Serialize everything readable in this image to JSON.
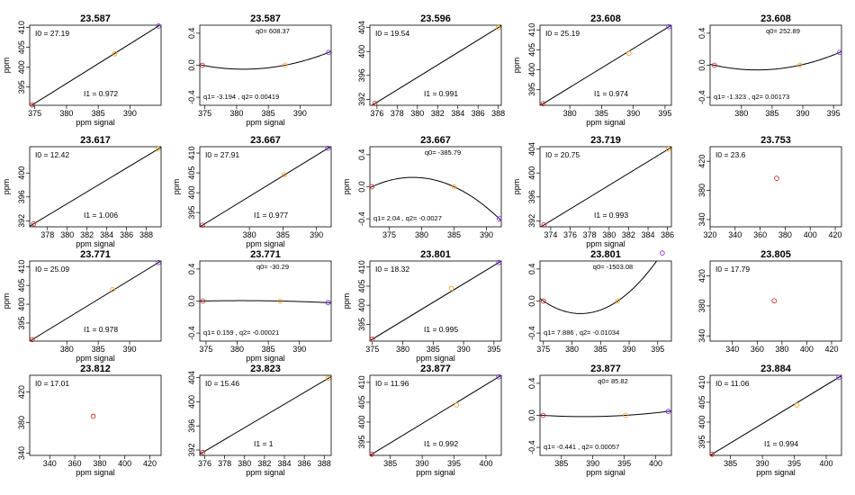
{
  "colors": {
    "p1": "#d62728",
    "p2": "#f5a623",
    "p3": "#8a2be2",
    "line": "#000000"
  },
  "chart_data": [
    {
      "type": "scatter",
      "title": "23.587",
      "xlabel": "ppm signal",
      "ylabel": "ppm",
      "x": [
        374.6,
        387.6,
        394.5
      ],
      "y": [
        390.5,
        403.4,
        410.4
      ],
      "xlim": [
        374.2,
        394.9
      ],
      "ylim": [
        390.4,
        410.6
      ],
      "xticks": [
        375,
        380,
        385,
        390
      ],
      "yticks": [
        395,
        400,
        405,
        410
      ],
      "fit": "line",
      "labels": [
        "I0 = 27.19",
        "I1 = 0.972"
      ]
    },
    {
      "type": "scatter",
      "title": "23.587",
      "xlabel": "ppm signal",
      "ylabel": "",
      "x": [
        374.6,
        387.6,
        394.5
      ],
      "y": [
        0,
        0,
        0.16
      ],
      "xlim": [
        374.2,
        394.9
      ],
      "ylim": [
        -0.5,
        0.5
      ],
      "xticks": [
        375,
        380,
        385,
        390
      ],
      "yticks": [
        -0.4,
        0.0,
        0.4
      ],
      "fit": "quadratic",
      "labels": [
        "q0= 608.37",
        "q1= -3.194 , q2= 0.00419"
      ]
    },
    {
      "type": "scatter",
      "title": "23.596",
      "xlabel": "",
      "ylabel": "",
      "x": [
        375.8,
        388.0
      ],
      "y": [
        391.3,
        404.0
      ],
      "xlim": [
        375.3,
        388.3
      ],
      "ylim": [
        391.0,
        404.4
      ],
      "xticks": [
        376,
        378,
        380,
        382,
        384,
        386,
        388
      ],
      "yticks": [
        392,
        396,
        400,
        404
      ],
      "fit": "line",
      "labels": [
        "I0 = 19.54",
        "I1 = 0.991"
      ]
    },
    {
      "type": "scatter",
      "title": "23.608",
      "xlabel": "ppm signal",
      "ylabel": "ppm",
      "x": [
        375.8,
        389.3,
        395.6
      ],
      "y": [
        391.4,
        404.1,
        410.8
      ],
      "xlim": [
        375.3,
        396.0
      ],
      "ylim": [
        391.0,
        411.2
      ],
      "xticks": [
        380,
        385,
        390,
        395
      ],
      "yticks": [
        395,
        400,
        405,
        410
      ],
      "fit": "line",
      "labels": [
        "I0 = 25.19",
        "I1 = 0.974"
      ]
    },
    {
      "type": "scatter",
      "title": "23.608",
      "xlabel": "",
      "ylabel": "",
      "x": [
        375.6,
        389.5,
        396.0
      ],
      "y": [
        0,
        0,
        0.16
      ],
      "xlim": [
        374.9,
        396.3
      ],
      "ylim": [
        -0.5,
        0.5
      ],
      "xticks": [
        380,
        385,
        390,
        395
      ],
      "yticks": [
        -0.4,
        0.0,
        0.4
      ],
      "fit": "quadratic",
      "labels": [
        "q0= 252.89",
        "q1= -1.323 , q2= 0.00173"
      ]
    },
    {
      "type": "scatter",
      "title": "23.617",
      "xlabel": "ppm signal",
      "ylabel": "ppm",
      "x": [
        376.6,
        389.2
      ],
      "y": [
        391.5,
        404.0
      ],
      "xlim": [
        376.2,
        389.5
      ],
      "ylim": [
        391.0,
        404.4
      ],
      "xticks": [
        378,
        380,
        382,
        384,
        386,
        388
      ],
      "yticks": [
        392,
        396,
        400
      ],
      "fit": "line",
      "labels": [
        "I0 = 12.42",
        "I1 = 1.006"
      ]
    },
    {
      "type": "scatter",
      "title": "23.667",
      "xlabel": "ppm signal",
      "ylabel": "ppm",
      "x": [
        373.0,
        385.2,
        391.7
      ],
      "y": [
        391.8,
        404.5,
        411.2
      ],
      "xlim": [
        372.6,
        392.2
      ],
      "ylim": [
        391.4,
        411.6
      ],
      "xticks": [
        380,
        385,
        390
      ],
      "yticks": [
        395,
        400,
        405,
        410
      ],
      "fit": "line",
      "labels": [
        "I0 = 27.91",
        "I1 = 0.977"
      ]
    },
    {
      "type": "scatter",
      "title": "23.667",
      "xlabel": "",
      "ylabel": "ppm",
      "x": [
        372.3,
        385.0,
        392.0
      ],
      "y": [
        0,
        0,
        -0.4
      ],
      "xlim": [
        372.0,
        392.3
      ],
      "ylim": [
        -0.5,
        0.5
      ],
      "xticks": [
        375,
        380,
        385,
        390
      ],
      "yticks": [
        -0.4,
        0.0,
        0.4
      ],
      "fit": "quadratic",
      "labels": [
        "q0= -385.79",
        "q1= 2.04 , q2= -0.0027"
      ]
    },
    {
      "type": "scatter",
      "title": "23.719",
      "xlabel": "ppm signal",
      "ylabel": "ppm",
      "x": [
        373.3,
        386.1
      ],
      "y": [
        391.3,
        404.0
      ],
      "xlim": [
        372.9,
        386.4
      ],
      "ylim": [
        391.0,
        404.4
      ],
      "xticks": [
        374,
        376,
        378,
        380,
        382,
        384,
        386
      ],
      "yticks": [
        392,
        396,
        400,
        404
      ],
      "fit": "line",
      "labels": [
        "I0 = 20.75",
        "I1 = 0.993"
      ]
    },
    {
      "type": "scatter",
      "title": "23.753",
      "xlabel": "",
      "ylabel": "",
      "x": [
        373.2
      ],
      "y": [
        396.6
      ],
      "xlim": [
        320,
        425
      ],
      "ylim": [
        330,
        440
      ],
      "xticks": [
        320,
        340,
        360,
        380,
        400,
        420
      ],
      "yticks": [
        340,
        380,
        420
      ],
      "fit": "none",
      "labels": [
        "I0 = 23.6"
      ]
    },
    {
      "type": "scatter",
      "title": "23.771",
      "xlabel": "ppm signal",
      "ylabel": "ppm",
      "x": [
        374.5,
        387.3,
        394.6
      ],
      "y": [
        390.6,
        403.9,
        411.1
      ],
      "xlim": [
        374.1,
        395.0
      ],
      "ylim": [
        390.2,
        411.5
      ],
      "xticks": [
        380,
        385,
        390
      ],
      "yticks": [
        395,
        400,
        405,
        410
      ],
      "fit": "line",
      "labels": [
        "I0 = 25.09",
        "I1 = 0.978"
      ]
    },
    {
      "type": "scatter",
      "title": "23.771",
      "xlabel": "ppm signal",
      "ylabel": "",
      "x": [
        374.5,
        386.9,
        394.6
      ],
      "y": [
        0,
        0,
        -0.02
      ],
      "xlim": [
        374.0,
        395.1
      ],
      "ylim": [
        -0.5,
        0.5
      ],
      "xticks": [
        375,
        380,
        385,
        390
      ],
      "yticks": [
        -0.4,
        0.0,
        0.4
      ],
      "fit": "quadratic",
      "labels": [
        "q0= -30.29",
        "q1= 0.159 , q2= -0.00021"
      ]
    },
    {
      "type": "scatter",
      "title": "23.801",
      "xlabel": "ppm signal",
      "ylabel": "ppm",
      "x": [
        375.0,
        388.0,
        395.8
      ],
      "y": [
        391.1,
        404.4,
        411.2
      ],
      "xlim": [
        374.6,
        396.2
      ],
      "ylim": [
        390.6,
        411.6
      ],
      "xticks": [
        375,
        380,
        385,
        390,
        395
      ],
      "yticks": [
        395,
        400,
        405,
        410
      ],
      "fit": "line",
      "labels": [
        "I0 = 18.32",
        "I1 = 0.995"
      ]
    },
    {
      "type": "scatter",
      "title": "23.801",
      "xlabel": "",
      "ylabel": "",
      "x": [
        375.0,
        388.0,
        395.8
      ],
      "y": [
        0,
        0,
        0.6
      ],
      "xlim": [
        374.4,
        397.4
      ],
      "ylim": [
        -0.5,
        0.5
      ],
      "xticks": [
        375,
        380,
        385,
        390,
        395
      ],
      "yticks": [
        -0.4,
        0.0,
        0.4
      ],
      "fit": "quadratic",
      "labels": [
        "q0= -1503.08",
        "q1= 7.886 , q2= -0.01034"
      ]
    },
    {
      "type": "scatter",
      "title": "23.805",
      "xlabel": "",
      "ylabel": "",
      "x": [
        373.7
      ],
      "y": [
        386.8
      ],
      "xlim": [
        322,
        428
      ],
      "ylim": [
        333,
        440
      ],
      "xticks": [
        340,
        360,
        380,
        400,
        420
      ],
      "yticks": [
        340,
        380,
        420
      ],
      "fit": "none",
      "labels": [
        "I0 = 17.79"
      ]
    },
    {
      "type": "scatter",
      "title": "23.812",
      "xlabel": "ppm signal",
      "ylabel": "",
      "x": [
        374.7
      ],
      "y": [
        388.3
      ],
      "xlim": [
        324,
        429
      ],
      "ylim": [
        337,
        442
      ],
      "xticks": [
        340,
        360,
        380,
        400,
        420
      ],
      "yticks": [
        340,
        380,
        420
      ],
      "fit": "none",
      "labels": [
        "I0 = 17.01"
      ]
    },
    {
      "type": "scatter",
      "title": "23.823",
      "xlabel": "ppm signal",
      "ylabel": "",
      "x": [
        375.8,
        388.4
      ],
      "y": [
        391.6,
        403.9
      ],
      "xlim": [
        375.5,
        388.7
      ],
      "ylim": [
        391.1,
        404.4
      ],
      "xticks": [
        376,
        378,
        380,
        382,
        384,
        386,
        388
      ],
      "yticks": [
        392,
        396,
        400,
        404
      ],
      "fit": "line",
      "labels": [
        "I0 = 15.46",
        "I1 = 1"
      ]
    },
    {
      "type": "scatter",
      "title": "23.877",
      "xlabel": "ppm signal",
      "ylabel": "",
      "x": [
        382.1,
        395.4,
        402.0
      ],
      "y": [
        391.9,
        404.3,
        411.4
      ],
      "xlim": [
        381.8,
        402.4
      ],
      "ylim": [
        391.6,
        411.8
      ],
      "xticks": [
        385,
        390,
        395,
        400
      ],
      "yticks": [
        395,
        400,
        405,
        410
      ],
      "fit": "line",
      "labels": [
        "I0 = 11.96",
        "I1 = 0.992"
      ]
    },
    {
      "type": "scatter",
      "title": "23.877",
      "xlabel": "ppm signal",
      "ylabel": "",
      "x": [
        382.1,
        395.2,
        402.0
      ],
      "y": [
        0,
        0,
        0.05
      ],
      "xlim": [
        381.6,
        402.5
      ],
      "ylim": [
        -0.5,
        0.5
      ],
      "xticks": [
        385,
        390,
        395,
        400
      ],
      "yticks": [
        -0.4,
        0.0,
        0.4
      ],
      "fit": "quadratic",
      "labels": [
        "q0= 85.82",
        "q1= -0.441 , q2= 0.00057"
      ]
    },
    {
      "type": "scatter",
      "title": "23.884",
      "xlabel": "ppm signal",
      "ylabel": "",
      "x": [
        382.1,
        395.4,
        402.0
      ],
      "y": [
        391.9,
        404.3,
        411.3
      ],
      "xlim": [
        381.8,
        402.4
      ],
      "ylim": [
        391.6,
        411.8
      ],
      "xticks": [
        385,
        390,
        395,
        400
      ],
      "yticks": [
        395,
        400,
        405,
        410
      ],
      "fit": "line",
      "labels": [
        "I0 = 11.06",
        "I1 = 0.994"
      ]
    }
  ]
}
